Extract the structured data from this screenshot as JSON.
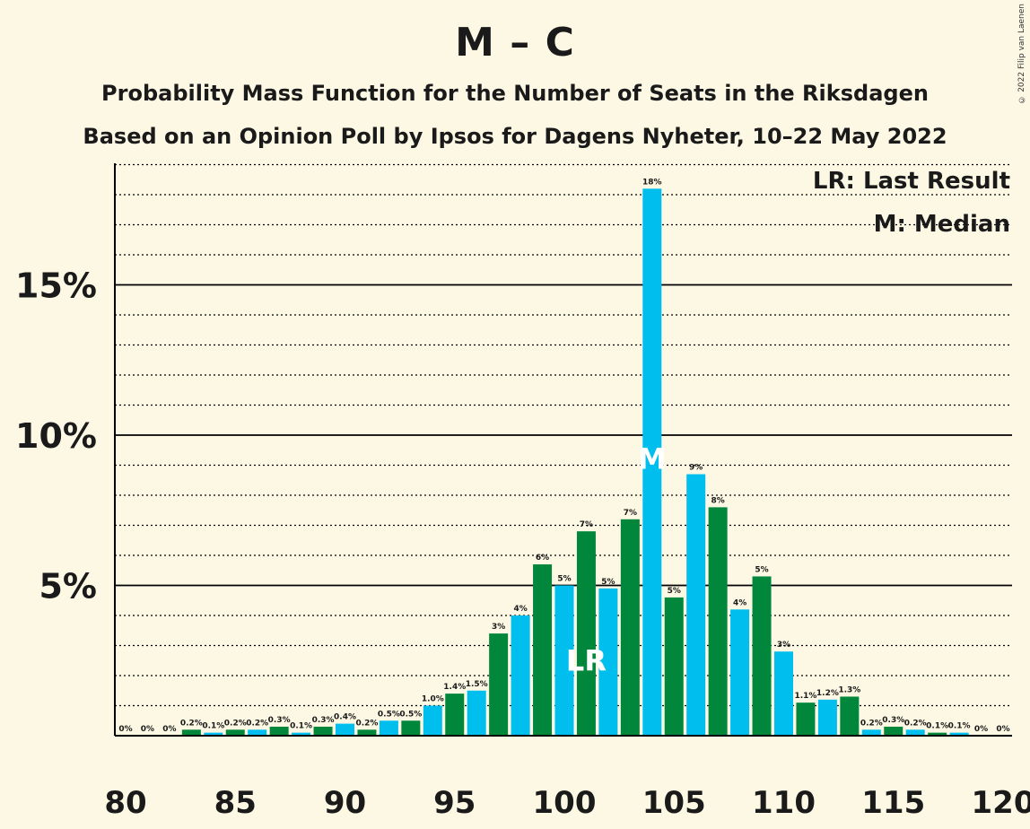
{
  "title": "M – C",
  "subtitle": "Probability Mass Function for the Number of Seats in the Riksdagen",
  "subtitle2": "Based on an Opinion Poll by Ipsos for Dagens Nyheter, 10–22 May 2022",
  "copyright": "© 2022 Filip van Laenen",
  "legend": {
    "last_result": "LR: Last Result",
    "median": "M: Median"
  },
  "colors": {
    "background": "#fdf8e4",
    "green": "#00873c",
    "blue": "#00bfee",
    "axis": "#000000"
  },
  "chart_data": {
    "type": "bar",
    "x_range": [
      80,
      120
    ],
    "x_ticks": [
      80,
      85,
      90,
      95,
      100,
      105,
      110,
      115,
      120
    ],
    "y_ticks": [
      5,
      10,
      15
    ],
    "y_tick_labels": [
      "5%",
      "10%",
      "15%"
    ],
    "y_minor_step": 1,
    "ylim": [
      0,
      19
    ],
    "last_result_seat": 101,
    "last_result_marker": "LR",
    "median_seat": 104,
    "median_marker": "M",
    "bars": [
      {
        "seat": 80,
        "value": 0,
        "label": "0%",
        "color": "blue"
      },
      {
        "seat": 81,
        "value": 0,
        "label": "0%",
        "color": "green"
      },
      {
        "seat": 82,
        "value": 0,
        "label": "0%",
        "color": "blue"
      },
      {
        "seat": 83,
        "value": 0.2,
        "label": "0.2%",
        "color": "green"
      },
      {
        "seat": 84,
        "value": 0.1,
        "label": "0.1%",
        "color": "blue"
      },
      {
        "seat": 85,
        "value": 0.2,
        "label": "0.2%",
        "color": "green"
      },
      {
        "seat": 86,
        "value": 0.2,
        "label": "0.2%",
        "color": "blue"
      },
      {
        "seat": 87,
        "value": 0.3,
        "label": "0.3%",
        "color": "green"
      },
      {
        "seat": 88,
        "value": 0.1,
        "label": "0.1%",
        "color": "blue"
      },
      {
        "seat": 89,
        "value": 0.3,
        "label": "0.3%",
        "color": "green"
      },
      {
        "seat": 90,
        "value": 0.4,
        "label": "0.4%",
        "color": "blue"
      },
      {
        "seat": 91,
        "value": 0.2,
        "label": "0.2%",
        "color": "green"
      },
      {
        "seat": 92,
        "value": 0.5,
        "label": "0.5%",
        "color": "blue"
      },
      {
        "seat": 93,
        "value": 0.5,
        "label": "0.5%",
        "color": "green"
      },
      {
        "seat": 94,
        "value": 1.0,
        "label": "1.0%",
        "color": "blue"
      },
      {
        "seat": 95,
        "value": 1.4,
        "label": "1.4%",
        "color": "green"
      },
      {
        "seat": 96,
        "value": 1.5,
        "label": "1.5%",
        "color": "blue"
      },
      {
        "seat": 97,
        "value": 3.4,
        "label": "3%",
        "color": "green"
      },
      {
        "seat": 98,
        "value": 4.0,
        "label": "4%",
        "color": "blue"
      },
      {
        "seat": 99,
        "value": 5.7,
        "label": "6%",
        "color": "green"
      },
      {
        "seat": 100,
        "value": 5.0,
        "label": "5%",
        "color": "blue"
      },
      {
        "seat": 101,
        "value": 6.8,
        "label": "7%",
        "color": "green"
      },
      {
        "seat": 102,
        "value": 4.9,
        "label": "5%",
        "color": "blue"
      },
      {
        "seat": 103,
        "value": 7.2,
        "label": "7%",
        "color": "green"
      },
      {
        "seat": 104,
        "value": 18.2,
        "label": "18%",
        "color": "blue"
      },
      {
        "seat": 105,
        "value": 4.6,
        "label": "5%",
        "color": "green"
      },
      {
        "seat": 106,
        "value": 8.7,
        "label": "9%",
        "color": "blue"
      },
      {
        "seat": 107,
        "value": 7.6,
        "label": "8%",
        "color": "green"
      },
      {
        "seat": 108,
        "value": 4.2,
        "label": "4%",
        "color": "blue"
      },
      {
        "seat": 109,
        "value": 5.3,
        "label": "5%",
        "color": "green"
      },
      {
        "seat": 110,
        "value": 2.8,
        "label": "3%",
        "color": "blue"
      },
      {
        "seat": 111,
        "value": 1.1,
        "label": "1.1%",
        "color": "green"
      },
      {
        "seat": 112,
        "value": 1.2,
        "label": "1.2%",
        "color": "blue"
      },
      {
        "seat": 113,
        "value": 1.3,
        "label": "1.3%",
        "color": "green"
      },
      {
        "seat": 114,
        "value": 0.2,
        "label": "0.2%",
        "color": "blue"
      },
      {
        "seat": 115,
        "value": 0.3,
        "label": "0.3%",
        "color": "green"
      },
      {
        "seat": 116,
        "value": 0.2,
        "label": "0.2%",
        "color": "blue"
      },
      {
        "seat": 117,
        "value": 0.1,
        "label": "0.1%",
        "color": "green"
      },
      {
        "seat": 118,
        "value": 0.1,
        "label": "0.1%",
        "color": "blue"
      },
      {
        "seat": 119,
        "value": 0,
        "label": "0%",
        "color": "green"
      },
      {
        "seat": 120,
        "value": 0,
        "label": "0%",
        "color": "blue"
      }
    ]
  }
}
